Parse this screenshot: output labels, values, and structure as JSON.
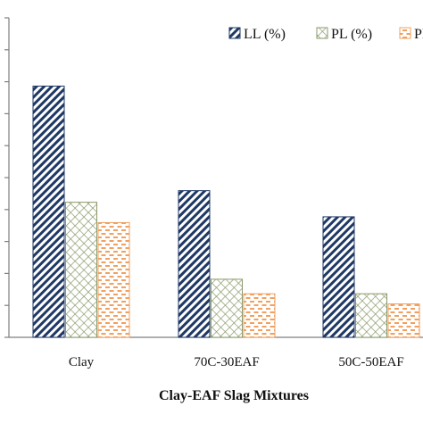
{
  "chart_data": {
    "type": "bar",
    "title": "",
    "xlabel": "Clay-EAF Slag Mixtures",
    "ylabel": "",
    "categories": [
      "Clay",
      "70C-30EAF",
      "50C-50EAF"
    ],
    "series": [
      {
        "name": "LL (%)",
        "values": [
          86.5,
          50.5,
          41.5
        ],
        "color": "#1f3864",
        "pattern": "diagonal-hatch"
      },
      {
        "name": "PL (%)",
        "values": [
          46.5,
          20,
          15
        ],
        "color": "#8a9a6a",
        "pattern": "crosshatch"
      },
      {
        "name": "PI (%)",
        "values": [
          39.5,
          15,
          11.5
        ],
        "color": "#f0a060",
        "pattern": "dashes"
      }
    ],
    "ylim": [
      0,
      110
    ],
    "y_gridlines": 10,
    "grid": false,
    "legend_position": "top-right"
  }
}
